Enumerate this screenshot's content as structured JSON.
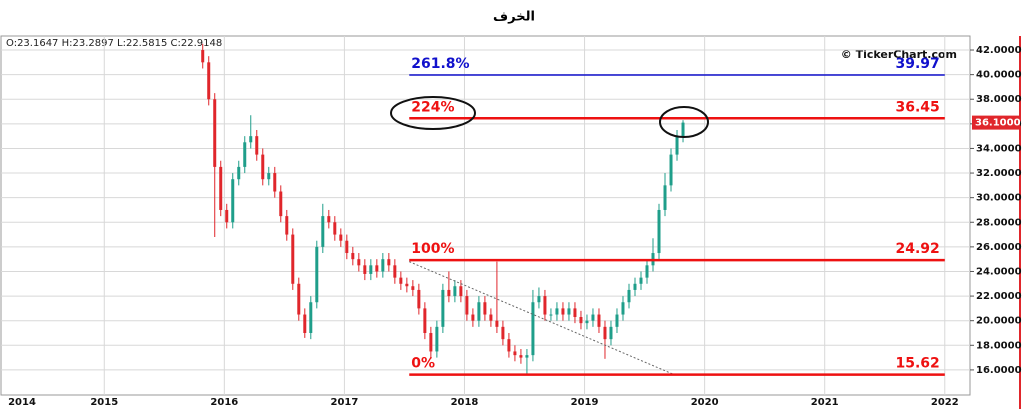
{
  "chart_data": {
    "type": "candlestick",
    "title": "الخرف",
    "ohlc_header": "O:23.1647  H:23.2897  L:22.5815  C:22.9148",
    "watermark": "© TickerChart.com",
    "x": [
      2015.82,
      2015.87,
      2015.92,
      2015.97,
      2016.02,
      2016.07,
      2016.12,
      2016.17,
      2016.22,
      2016.27,
      2016.32,
      2016.37,
      2016.42,
      2016.47,
      2016.52,
      2016.57,
      2016.62,
      2016.67,
      2016.72,
      2016.77,
      2016.82,
      2016.87,
      2016.92,
      2016.97,
      2017.02,
      2017.07,
      2017.12,
      2017.17,
      2017.22,
      2017.27,
      2017.32,
      2017.37,
      2017.42,
      2017.47,
      2017.52,
      2017.57,
      2017.62,
      2017.67,
      2017.72,
      2017.77,
      2017.82,
      2017.87,
      2017.92,
      2017.97,
      2018.02,
      2018.07,
      2018.12,
      2018.17,
      2018.22,
      2018.27,
      2018.32,
      2018.37,
      2018.42,
      2018.47,
      2018.52,
      2018.57,
      2018.62,
      2018.67,
      2018.72,
      2018.77,
      2018.82,
      2018.87,
      2018.92,
      2018.97,
      2019.02,
      2019.07,
      2019.12,
      2019.17,
      2019.22,
      2019.27,
      2019.32,
      2019.37,
      2019.42,
      2019.47,
      2019.52,
      2019.57,
      2019.62,
      2019.67,
      2019.72,
      2019.77,
      2019.82
    ],
    "open": [
      42,
      41,
      38,
      32.5,
      29,
      28,
      31.5,
      32.5,
      34.5,
      35,
      33.5,
      31.5,
      32,
      30.5,
      28.5,
      27,
      23,
      20.5,
      19,
      21.5,
      26,
      28.5,
      28,
      27,
      26.5,
      25.5,
      25,
      24.5,
      23.8,
      24.5,
      24,
      25,
      24.5,
      23.5,
      23,
      22.8,
      22.5,
      21,
      19,
      17.5,
      19.5,
      22.5,
      22,
      22.8,
      22,
      20.5,
      20,
      21.5,
      20.5,
      20,
      19.5,
      18.5,
      17.5,
      17.2,
      17,
      17.2,
      21.5,
      22,
      20.5,
      20.5,
      21,
      20.5,
      21,
      20.3,
      19.8,
      20,
      20.5,
      19.5,
      18.5,
      19.5,
      20.5,
      21.5,
      22.5,
      23,
      23.5,
      24.5,
      25.5,
      29,
      31,
      33.5,
      35
    ],
    "high": [
      42.5,
      41.5,
      38.5,
      33,
      29.5,
      32,
      33,
      35,
      36.7,
      35.5,
      34,
      32.5,
      32.5,
      31,
      29,
      27.5,
      23.5,
      21,
      22,
      26.5,
      29.5,
      29,
      28.5,
      27.5,
      27,
      26,
      25.5,
      25,
      25,
      25,
      25.5,
      25.5,
      25,
      24,
      23.5,
      23.3,
      23,
      21.5,
      19.5,
      20,
      23,
      24,
      23.3,
      23.3,
      22.5,
      21,
      22,
      22,
      21,
      24.8,
      20,
      19,
      18,
      17.7,
      17.7,
      22.5,
      22.7,
      22.5,
      21,
      21.5,
      21.5,
      21.5,
      21.5,
      20.8,
      20.5,
      21,
      21,
      20,
      20,
      21,
      22,
      23,
      23.5,
      24,
      25,
      26.7,
      29.5,
      32,
      34,
      35.5,
      36.3
    ],
    "low": [
      40.5,
      37.5,
      26.8,
      28.5,
      27.5,
      27.5,
      31,
      32,
      34,
      33,
      31,
      31,
      30,
      28,
      26.5,
      22.5,
      20,
      18.6,
      18.5,
      21,
      25.5,
      27.5,
      26.5,
      26,
      25,
      24.5,
      24,
      23.3,
      23.3,
      23.5,
      23.5,
      24,
      23,
      22.5,
      22.3,
      22,
      20.5,
      18.5,
      16.9,
      17,
      19,
      21.5,
      21.5,
      21.5,
      20,
      19.5,
      19.5,
      20,
      19.5,
      19,
      18,
      17,
      16.7,
      16.5,
      15.62,
      16.7,
      21,
      20,
      20,
      20,
      20,
      20,
      19.8,
      19.3,
      19.3,
      19.5,
      19,
      16.9,
      18,
      19,
      20,
      21,
      22,
      22.5,
      23,
      24,
      25,
      28.5,
      30.5,
      33,
      34.5
    ],
    "close": [
      41,
      38,
      32.5,
      29,
      28,
      31.5,
      32.5,
      34.5,
      35,
      33.5,
      31.5,
      32,
      30.5,
      28.5,
      27,
      23,
      20.5,
      19,
      21.5,
      26,
      28.5,
      28,
      27,
      26.5,
      25.5,
      25,
      24.5,
      23.8,
      24.5,
      24,
      25,
      24.5,
      23.5,
      23,
      22.8,
      22.5,
      21,
      19,
      17.5,
      19.5,
      22.5,
      22,
      22.8,
      22,
      20.5,
      20,
      21.5,
      20.5,
      20,
      19.5,
      18.5,
      17.5,
      17.2,
      17,
      17.2,
      21.5,
      22,
      20.5,
      20.5,
      21,
      20.5,
      21,
      20.3,
      19.8,
      20,
      20.5,
      19.5,
      18.5,
      19.5,
      20.5,
      21.5,
      22.5,
      23,
      23.5,
      24.5,
      25.5,
      29,
      31,
      33.5,
      35,
      36.1
    ],
    "up_color": "#1f9e8a",
    "down_color": "#e0262b",
    "last_price": {
      "value": 36.1,
      "label": "36.1000"
    },
    "last_price_color": "#e0262b",
    "fib_range": [
      2017.54,
      2022.0
    ],
    "fib_levels": [
      {
        "label": "0%",
        "value": 15.62,
        "color": "#ee1111"
      },
      {
        "label": "100%",
        "value": 24.92,
        "color": "#ee1111"
      },
      {
        "label": "224%",
        "value": 36.45,
        "color": "#ee1111"
      },
      {
        "label": "261.8%",
        "value": 39.97,
        "color": "#1111cc"
      }
    ],
    "trendline": {
      "x": [
        2017.54,
        2019.75
      ],
      "y": [
        24.8,
        15.6
      ],
      "color": "#666666"
    },
    "xlim": [
      2014.14,
      2022.21
    ],
    "xticks": [
      2014,
      2015,
      2016,
      2017,
      2018,
      2019,
      2020,
      2021,
      2022
    ],
    "ylim": [
      13.96,
      43.14
    ],
    "yticks": [
      {
        "value": 16,
        "label": "16.0000"
      },
      {
        "value": 18,
        "label": "18.0000"
      },
      {
        "value": 20,
        "label": "20.0000"
      },
      {
        "value": 22,
        "label": "22.0000"
      },
      {
        "value": 24,
        "label": "24.0000"
      },
      {
        "value": 26,
        "label": "26.0000"
      },
      {
        "value": 28,
        "label": "28.0000"
      },
      {
        "value": 30,
        "label": "30.0000"
      },
      {
        "value": 32,
        "label": "32.0000"
      },
      {
        "value": 34,
        "label": "34.0000"
      },
      {
        "value": 36,
        "label": "36.0000"
      },
      {
        "value": 38,
        "label": "38.0000"
      },
      {
        "value": 40,
        "label": "40.0000"
      },
      {
        "value": 42,
        "label": "42.0000"
      }
    ],
    "grid": true
  }
}
